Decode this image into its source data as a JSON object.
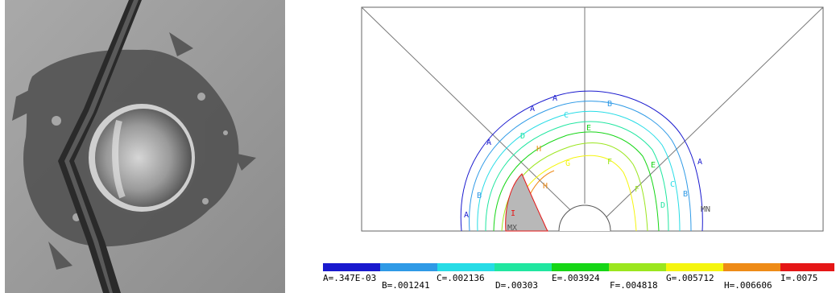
{
  "fem": {
    "contour_letters": [
      "A",
      "B",
      "C",
      "D",
      "E",
      "F",
      "G",
      "H",
      "I"
    ],
    "min_label": "MN",
    "max_label": "MX"
  },
  "legend": {
    "bands": [
      {
        "letter": "A",
        "label": "A=.347E-03",
        "color": "#1919ce"
      },
      {
        "letter": "B",
        "label": "B=.001241",
        "color": "#2f9ae6"
      },
      {
        "letter": "C",
        "label": "C=.002136",
        "color": "#27dce6"
      },
      {
        "letter": "D",
        "label": "D=.00303",
        "color": "#20e6a0"
      },
      {
        "letter": "E",
        "label": "E=.003924",
        "color": "#16d616"
      },
      {
        "letter": "F",
        "label": "F=.004818",
        "color": "#9be61e"
      },
      {
        "letter": "G",
        "label": "G=.005712",
        "color": "#f5f50f"
      },
      {
        "letter": "H",
        "label": "H=.006606",
        "color": "#ee8b17"
      },
      {
        "letter": "I",
        "label": "I=.0075",
        "color": "#e51616"
      }
    ]
  }
}
